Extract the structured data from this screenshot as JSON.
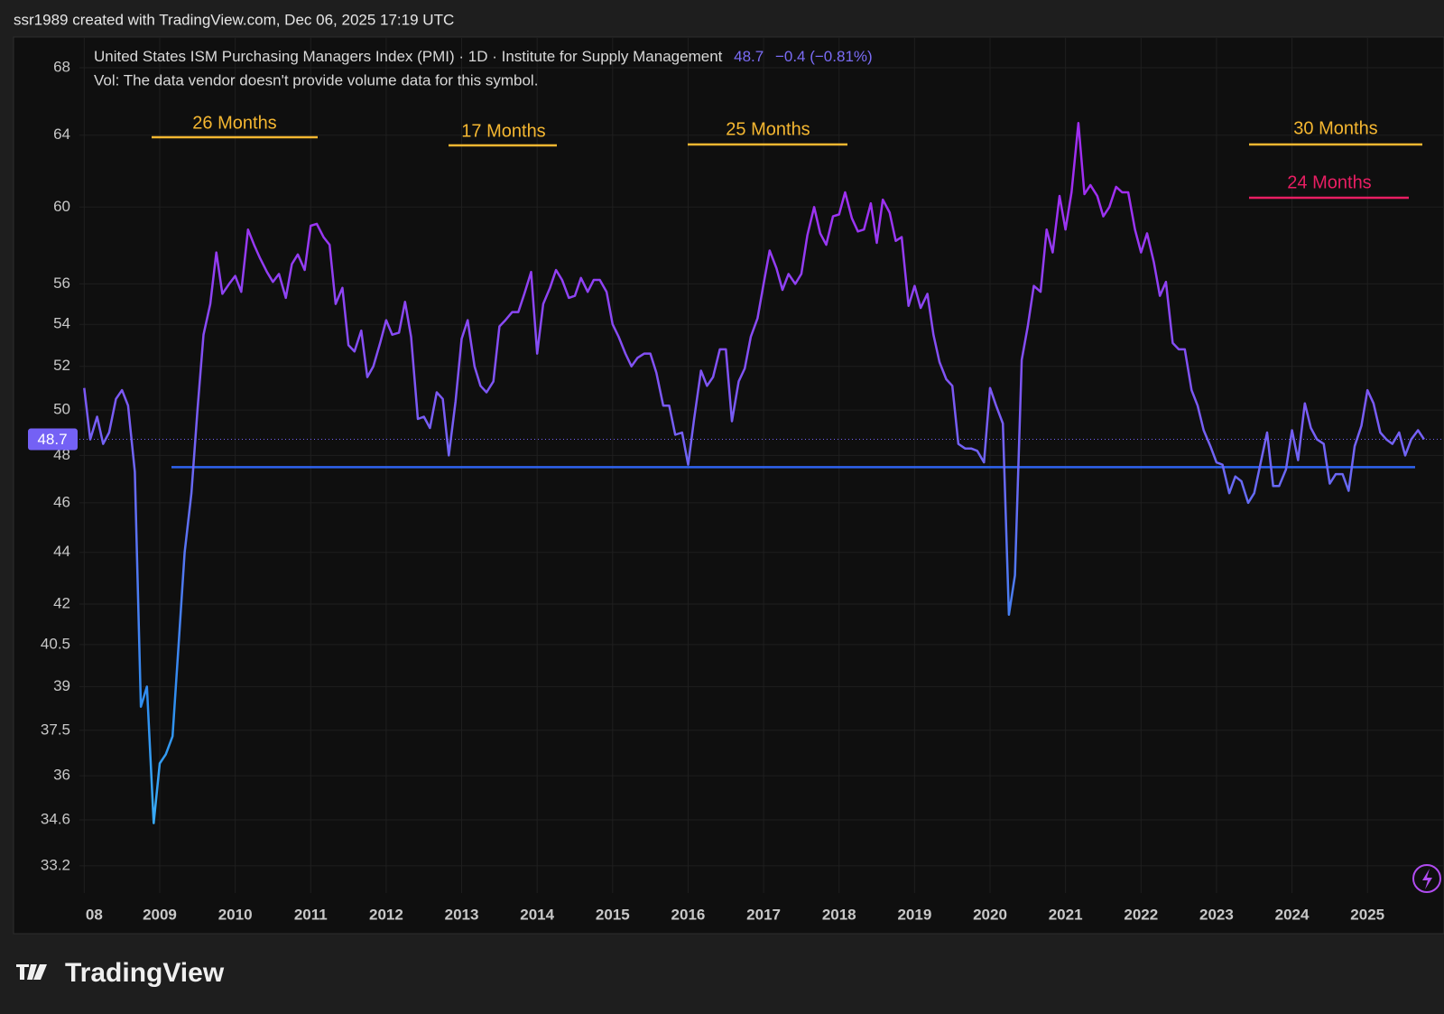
{
  "header": {
    "credit": "ssr1989 created with TradingView.com, Dec 06, 2025 17:19 UTC"
  },
  "footer": {
    "logo": "TradingView"
  },
  "chart_data": {
    "type": "line",
    "title": "United States ISM Purchasing Managers Index (PMI) · 1D · Institute for Supply Management",
    "change": "−0.4 (−0.81%)",
    "subtitle": "Vol: The data vendor doesn't provide volume data for this symbol.",
    "log_scale": true,
    "grid": true,
    "ylim": [
      32.4,
      69.9
    ],
    "yticks": [
      33.2,
      34.6,
      36,
      37.5,
      39,
      40.5,
      42,
      44,
      46,
      48,
      50,
      52,
      54,
      56,
      60,
      64,
      68
    ],
    "xlim": [
      2007.96,
      2025.99
    ],
    "xticks": [
      {
        "value": 2008,
        "label": "08"
      },
      2009,
      2010,
      2011,
      2012,
      2013,
      2014,
      2015,
      2016,
      2017,
      2018,
      2019,
      2020,
      2021,
      2022,
      2023,
      2024,
      2025
    ],
    "x": [
      2008,
      2008.08,
      2008.17,
      2008.25,
      2008.33,
      2008.42,
      2008.5,
      2008.58,
      2008.67,
      2008.75,
      2008.83,
      2008.92,
      2009,
      2009.08,
      2009.17,
      2009.25,
      2009.33,
      2009.42,
      2009.5,
      2009.58,
      2009.67,
      2009.75,
      2009.83,
      2009.92,
      2010,
      2010.08,
      2010.17,
      2010.25,
      2010.33,
      2010.42,
      2010.5,
      2010.58,
      2010.67,
      2010.75,
      2010.83,
      2010.92,
      2011,
      2011.08,
      2011.17,
      2011.25,
      2011.33,
      2011.42,
      2011.5,
      2011.58,
      2011.67,
      2011.75,
      2011.83,
      2011.92,
      2012,
      2012.08,
      2012.17,
      2012.25,
      2012.33,
      2012.42,
      2012.5,
      2012.58,
      2012.67,
      2012.75,
      2012.83,
      2012.92,
      2013,
      2013.08,
      2013.17,
      2013.25,
      2013.33,
      2013.42,
      2013.5,
      2013.58,
      2013.67,
      2013.75,
      2013.83,
      2013.92,
      2014,
      2014.08,
      2014.17,
      2014.25,
      2014.33,
      2014.42,
      2014.5,
      2014.58,
      2014.67,
      2014.75,
      2014.83,
      2014.92,
      2015,
      2015.08,
      2015.17,
      2015.25,
      2015.33,
      2015.42,
      2015.5,
      2015.58,
      2015.67,
      2015.75,
      2015.83,
      2015.92,
      2016,
      2016.08,
      2016.17,
      2016.25,
      2016.33,
      2016.42,
      2016.5,
      2016.58,
      2016.67,
      2016.75,
      2016.83,
      2016.92,
      2017,
      2017.08,
      2017.17,
      2017.25,
      2017.33,
      2017.42,
      2017.5,
      2017.58,
      2017.67,
      2017.75,
      2017.83,
      2017.92,
      2018,
      2018.08,
      2018.17,
      2018.25,
      2018.33,
      2018.42,
      2018.5,
      2018.58,
      2018.67,
      2018.75,
      2018.83,
      2018.92,
      2019,
      2019.08,
      2019.17,
      2019.25,
      2019.33,
      2019.42,
      2019.5,
      2019.58,
      2019.67,
      2019.75,
      2019.83,
      2019.92,
      2020,
      2020.08,
      2020.17,
      2020.25,
      2020.33,
      2020.42,
      2020.5,
      2020.58,
      2020.67,
      2020.75,
      2020.83,
      2020.92,
      2021,
      2021.08,
      2021.17,
      2021.25,
      2021.33,
      2021.42,
      2021.5,
      2021.58,
      2021.67,
      2021.75,
      2021.83,
      2021.92,
      2022,
      2022.08,
      2022.17,
      2022.25,
      2022.33,
      2022.42,
      2022.5,
      2022.58,
      2022.67,
      2022.75,
      2022.83,
      2022.92,
      2023,
      2023.08,
      2023.17,
      2023.25,
      2023.33,
      2023.42,
      2023.5,
      2023.58,
      2023.67,
      2023.75,
      2023.83,
      2023.92,
      2024,
      2024.08,
      2024.17,
      2024.25,
      2024.33,
      2024.42,
      2024.5,
      2024.58,
      2024.67,
      2024.75,
      2024.83,
      2024.92,
      2025,
      2025.08,
      2025.17,
      2025.25,
      2025.33,
      2025.42,
      2025.5,
      2025.58,
      2025.67,
      2025.75
    ],
    "series": [
      {
        "colors": [
          "#a02ef2",
          "#7461f5",
          "#2f8ff0",
          "#38a8f5"
        ],
        "values": [
          51,
          48.7,
          49.7,
          48.5,
          49,
          50.5,
          50.9,
          50.2,
          47.3,
          38.3,
          39,
          34.5,
          36.4,
          36.7,
          37.3,
          40.5,
          44,
          46.4,
          50,
          53.5,
          55,
          57.6,
          55.5,
          56,
          56.4,
          55.6,
          58.8,
          58,
          57.3,
          56.6,
          56.1,
          56.5,
          55.3,
          57,
          57.5,
          56.7,
          59,
          59.1,
          58.4,
          58,
          55,
          55.8,
          53,
          52.7,
          53.7,
          51.5,
          52,
          53.1,
          54.2,
          53.5,
          53.6,
          55.1,
          53.4,
          49.6,
          49.7,
          49.2,
          50.8,
          50.5,
          48,
          50.4,
          53.3,
          54.2,
          52,
          51.1,
          50.8,
          51.3,
          53.9,
          54.2,
          54.6,
          54.6,
          55.5,
          56.6,
          52.6,
          55,
          55.8,
          56.7,
          56.2,
          55.3,
          55.4,
          56.3,
          55.6,
          56.2,
          56.2,
          55.6,
          54,
          53.4,
          52.6,
          52,
          52.4,
          52.6,
          52.6,
          51.7,
          50.2,
          50.2,
          48.9,
          49,
          47.6,
          49.6,
          51.8,
          51.1,
          51.5,
          52.8,
          52.8,
          49.5,
          51.3,
          51.9,
          53.4,
          54.3,
          56,
          57.7,
          56.8,
          55.7,
          56.5,
          56,
          56.5,
          58.5,
          60,
          58.6,
          58,
          59.5,
          59.6,
          60.8,
          59.4,
          58.7,
          58.8,
          60.2,
          58.1,
          60.4,
          59.7,
          58.2,
          58.4,
          54.9,
          55.9,
          54.8,
          55.5,
          53.5,
          52.2,
          51.4,
          51.1,
          48.5,
          48.3,
          48.3,
          48.2,
          47.7,
          51,
          50.2,
          49.4,
          41.6,
          43.1,
          52.3,
          53.9,
          55.9,
          55.6,
          58.8,
          57.6,
          60.6,
          58.8,
          60.8,
          64.7,
          60.7,
          61.2,
          60.6,
          59.5,
          60,
          61.1,
          60.8,
          60.8,
          58.8,
          57.6,
          58.6,
          57.1,
          55.4,
          56.1,
          53.1,
          52.8,
          52.8,
          50.9,
          50.2,
          49.1,
          48.4,
          47.7,
          47.6,
          46.4,
          47.1,
          46.9,
          46,
          46.4,
          47.6,
          49,
          46.7,
          46.7,
          47.4,
          49.1,
          47.8,
          50.3,
          49.2,
          48.7,
          48.5,
          46.8,
          47.2,
          47.2,
          46.5,
          48.4,
          49.3,
          50.9,
          50.3,
          49,
          48.7,
          48.5,
          49,
          48,
          48.7,
          49.1,
          48.7
        ]
      }
    ],
    "reference_line": {
      "value": 47.5,
      "color": "#2f63f0"
    },
    "annotations": [
      {
        "text": "26 Months",
        "color": "#f5b731"
      },
      {
        "text": "17 Months",
        "color": "#f5b731"
      },
      {
        "text": "25 Months",
        "color": "#f5b731"
      },
      {
        "text": "30 Months",
        "color": "#f5b731"
      },
      {
        "text": "24 Months",
        "color": "#e91e63"
      }
    ]
  }
}
